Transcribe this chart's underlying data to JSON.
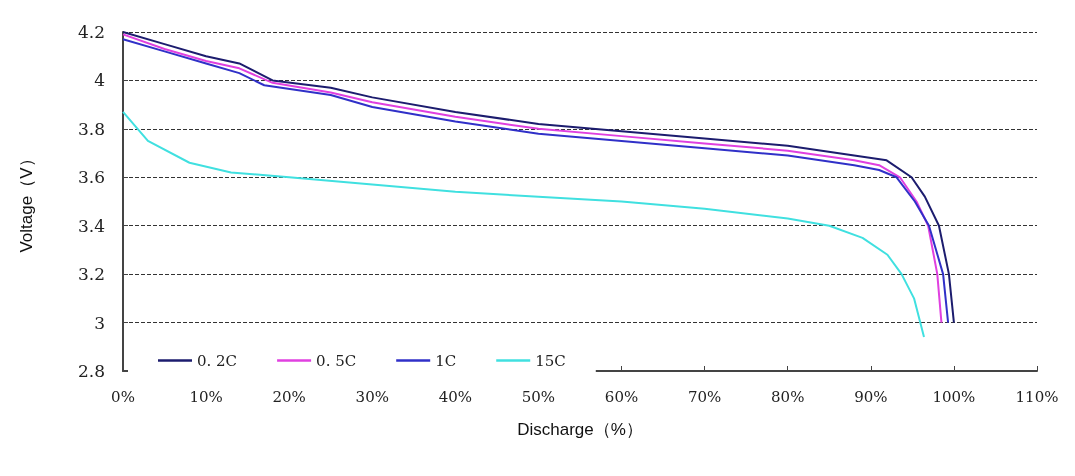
{
  "chart_data": {
    "type": "line",
    "xlabel": "Discharge（%）",
    "ylabel": "Voltage（V）",
    "xlim": [
      0,
      110
    ],
    "ylim": [
      2.8,
      4.2
    ],
    "xticks": [
      {
        "value": 0,
        "label": "0%"
      },
      {
        "value": 10,
        "label": "10%"
      },
      {
        "value": 20,
        "label": "20%"
      },
      {
        "value": 30,
        "label": "30%"
      },
      {
        "value": 40,
        "label": "40%"
      },
      {
        "value": 50,
        "label": "50%"
      },
      {
        "value": 60,
        "label": "60%"
      },
      {
        "value": 70,
        "label": "70%"
      },
      {
        "value": 80,
        "label": "80%"
      },
      {
        "value": 90,
        "label": "90%"
      },
      {
        "value": 100,
        "label": "100%"
      },
      {
        "value": 110,
        "label": "110%"
      }
    ],
    "yticks": [
      2.8,
      3,
      3.2,
      3.4,
      3.6,
      3.8,
      4,
      4.2
    ],
    "grid": "y",
    "legend": "bottom left",
    "marker": "none",
    "line_style": "solid",
    "series": [
      {
        "name": "0. 2C",
        "color": "#1c1c6e",
        "x": [
          0,
          5,
          10,
          14,
          18,
          25,
          30,
          40,
          50,
          60,
          70,
          80,
          88,
          91.9,
          94.9,
          96.5,
          98.2,
          99.4,
          100
        ],
        "values": [
          4.2,
          4.15,
          4.1,
          4.07,
          4.0,
          3.97,
          3.93,
          3.87,
          3.82,
          3.79,
          3.76,
          3.73,
          3.69,
          3.67,
          3.6,
          3.52,
          3.4,
          3.2,
          3.0
        ]
      },
      {
        "name": "0. 5C",
        "color": "#e040e0",
        "x": [
          0,
          5,
          10,
          14,
          18,
          25,
          30,
          40,
          50,
          60,
          70,
          80,
          88,
          91,
          93.5,
          95.5,
          96.9,
          98,
          98.5
        ],
        "values": [
          4.19,
          4.13,
          4.08,
          4.05,
          3.99,
          3.95,
          3.91,
          3.85,
          3.8,
          3.77,
          3.74,
          3.71,
          3.67,
          3.65,
          3.6,
          3.5,
          3.4,
          3.2,
          3.0
        ]
      },
      {
        "name": "1C",
        "color": "#3030c8",
        "x": [
          0,
          5,
          10,
          14,
          17,
          25,
          30,
          40,
          50,
          60,
          70,
          80,
          88,
          91,
          93.1,
          95.3,
          97,
          98.7,
          99.3
        ],
        "values": [
          4.17,
          4.12,
          4.07,
          4.03,
          3.98,
          3.94,
          3.89,
          3.83,
          3.78,
          3.75,
          3.72,
          3.69,
          3.65,
          3.63,
          3.6,
          3.5,
          3.4,
          3.2,
          3.0
        ]
      },
      {
        "name": "15C",
        "color": "#40e0e0",
        "x": [
          0,
          3,
          8,
          13,
          20,
          30,
          40,
          50,
          60,
          70,
          80,
          85,
          89,
          92,
          93.7,
          95.2,
          96.4
        ],
        "values": [
          3.87,
          3.75,
          3.66,
          3.62,
          3.6,
          3.57,
          3.54,
          3.52,
          3.5,
          3.47,
          3.43,
          3.4,
          3.35,
          3.28,
          3.2,
          3.1,
          2.94
        ]
      }
    ]
  }
}
